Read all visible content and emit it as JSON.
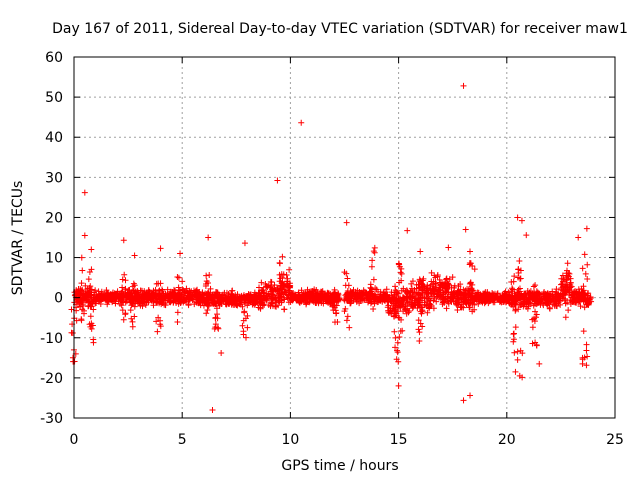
{
  "chart_data": {
    "type": "scatter",
    "title": "Day 167 of 2011, Sidereal Day-to-day VTEC variation (SDTVAR) for receiver maw1",
    "xlabel": "GPS time / hours",
    "ylabel": "SDTVAR / TECUs",
    "xlim": [
      0,
      25
    ],
    "ylim": [
      -30,
      60
    ],
    "xticks": [
      "0",
      "5",
      "10",
      "15",
      "20",
      "25"
    ],
    "yticks": [
      "-30",
      "-20",
      "-10",
      "0",
      "10",
      "20",
      "30",
      "40",
      "50",
      "60"
    ],
    "grid": true,
    "marker": "plus",
    "color": "#ff0000",
    "series": [
      {
        "name": "SDTVAR",
        "bands": [
          {
            "from": 0.0,
            "to": 1.0,
            "low": -2.5,
            "high": 2.5
          },
          {
            "from": 1.0,
            "to": 2.0,
            "low": -1.5,
            "high": 1.8
          },
          {
            "from": 2.0,
            "to": 3.5,
            "low": -2.0,
            "high": 2.2
          },
          {
            "from": 3.5,
            "to": 4.5,
            "low": -2.0,
            "high": 2.0
          },
          {
            "from": 4.5,
            "to": 6.0,
            "low": -2.0,
            "high": 2.0
          },
          {
            "from": 6.0,
            "to": 8.5,
            "low": -2.5,
            "high": 1.5
          },
          {
            "from": 8.5,
            "to": 9.5,
            "low": -3.0,
            "high": 4.0
          },
          {
            "from": 9.5,
            "to": 10.0,
            "low": -2.0,
            "high": 8.0
          },
          {
            "from": 10.0,
            "to": 12.3,
            "low": -2.0,
            "high": 2.0
          },
          {
            "from": 12.6,
            "to": 14.5,
            "low": -1.5,
            "high": 2.0
          },
          {
            "from": 14.5,
            "to": 15.5,
            "low": -5.0,
            "high": 3.0
          },
          {
            "from": 15.5,
            "to": 16.5,
            "low": -4.0,
            "high": 5.0
          },
          {
            "from": 16.5,
            "to": 17.5,
            "low": -3.0,
            "high": 6.0
          },
          {
            "from": 17.5,
            "to": 18.5,
            "low": -3.0,
            "high": 3.0
          },
          {
            "from": 18.5,
            "to": 20.0,
            "low": -1.5,
            "high": 1.5
          },
          {
            "from": 20.0,
            "to": 21.0,
            "low": -3.0,
            "high": 2.5
          },
          {
            "from": 21.0,
            "to": 22.5,
            "low": -2.5,
            "high": 2.0
          },
          {
            "from": 22.5,
            "to": 23.0,
            "low": -2.5,
            "high": 7.0
          },
          {
            "from": 23.0,
            "to": 23.9,
            "low": -2.0,
            "high": 2.0
          }
        ],
        "spikes": [
          {
            "x": 0.0,
            "lo": -16.0,
            "hi": 3.0
          },
          {
            "x": 0.4,
            "lo": -6.0,
            "hi": 11.0
          },
          {
            "x": 0.8,
            "lo": -11.0,
            "hi": 8.0
          },
          {
            "x": 2.3,
            "lo": -7.0,
            "hi": 6.0
          },
          {
            "x": 2.7,
            "lo": -8.0,
            "hi": 5.0
          },
          {
            "x": 3.9,
            "lo": -9.0,
            "hi": 4.0
          },
          {
            "x": 4.9,
            "lo": -7.0,
            "hi": 6.0
          },
          {
            "x": 6.2,
            "lo": -5.0,
            "hi": 6.5
          },
          {
            "x": 6.6,
            "lo": -8.0,
            "hi": 2.0
          },
          {
            "x": 7.9,
            "lo": -12.0,
            "hi": 3.0
          },
          {
            "x": 9.6,
            "lo": -3.0,
            "hi": 11.0
          },
          {
            "x": 12.1,
            "lo": -10.0,
            "hi": 2.0
          },
          {
            "x": 12.6,
            "lo": -8.0,
            "hi": 7.0
          },
          {
            "x": 13.8,
            "lo": -4.0,
            "hi": 12.0
          },
          {
            "x": 14.9,
            "lo": -16.0,
            "hi": 4.0
          },
          {
            "x": 15.1,
            "lo": -10.0,
            "hi": 9.0
          },
          {
            "x": 16.0,
            "lo": -11.0,
            "hi": 5.0
          },
          {
            "x": 18.4,
            "lo": -4.0,
            "hi": 9.0
          },
          {
            "x": 20.3,
            "lo": -15.0,
            "hi": 12.0
          },
          {
            "x": 20.6,
            "lo": -20.0,
            "hi": 10.0
          },
          {
            "x": 21.3,
            "lo": -12.0,
            "hi": 4.0
          },
          {
            "x": 22.8,
            "lo": -6.0,
            "hi": 9.0
          },
          {
            "x": 23.6,
            "lo": -17.0,
            "hi": 10.0
          }
        ],
        "outliers": [
          [
            0.5,
            26.2
          ],
          [
            0.5,
            15.5
          ],
          [
            0.8,
            12.0
          ],
          [
            2.3,
            14.3
          ],
          [
            2.8,
            10.5
          ],
          [
            4.0,
            12.3
          ],
          [
            4.9,
            11.0
          ],
          [
            6.2,
            15.0
          ],
          [
            7.9,
            13.6
          ],
          [
            9.4,
            29.2
          ],
          [
            10.5,
            43.6
          ],
          [
            12.6,
            18.7
          ],
          [
            13.9,
            12.4
          ],
          [
            15.4,
            16.7
          ],
          [
            16.0,
            11.5
          ],
          [
            17.3,
            12.5
          ],
          [
            18.0,
            52.8
          ],
          [
            18.1,
            17.0
          ],
          [
            18.3,
            11.5
          ],
          [
            20.5,
            20.0
          ],
          [
            20.7,
            19.2
          ],
          [
            20.9,
            15.6
          ],
          [
            23.3,
            15.0
          ],
          [
            23.7,
            17.2
          ],
          [
            23.6,
            10.8
          ],
          [
            6.4,
            -28.0
          ],
          [
            15.0,
            -22.0
          ],
          [
            18.0,
            -25.6
          ],
          [
            18.3,
            -24.4
          ],
          [
            20.4,
            -18.5
          ],
          [
            20.6,
            -19.5
          ],
          [
            20.5,
            -15.5
          ],
          [
            21.5,
            -16.5
          ],
          [
            23.5,
            -16.5
          ],
          [
            23.5,
            -15.0
          ],
          [
            6.8,
            -13.8
          ],
          [
            0.9,
            -11.2
          ]
        ]
      }
    ]
  }
}
